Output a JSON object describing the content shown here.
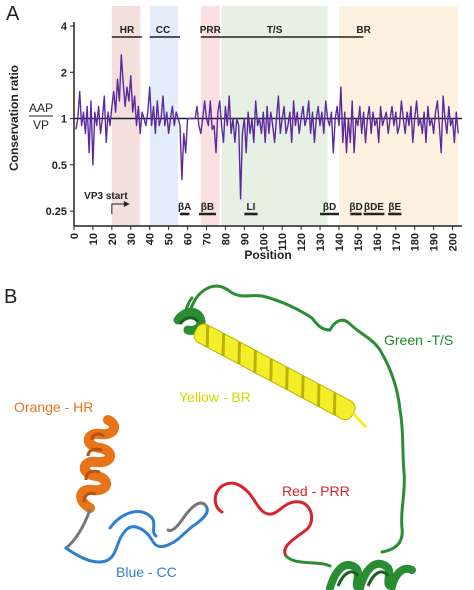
{
  "panel_a_label": "A",
  "panel_b_label": "B",
  "chart_data": {
    "type": "line",
    "title": "",
    "xlabel": "Position",
    "ylabel": "Conservation ratio",
    "ratio_label": {
      "numerator": "AAP",
      "denominator": "VP"
    },
    "xlim": [
      0,
      205
    ],
    "ylim": [
      0.2,
      4
    ],
    "yscale": "log",
    "x_ticks": [
      0,
      10,
      20,
      30,
      40,
      50,
      60,
      70,
      80,
      90,
      100,
      110,
      120,
      130,
      140,
      150,
      160,
      170,
      180,
      190,
      200
    ],
    "y_ticks": [
      {
        "value": 0.25,
        "label": "0.25"
      },
      {
        "value": 0.5,
        "label": "0.5"
      },
      {
        "value": 1,
        "label": "1"
      },
      {
        "value": 2,
        "label": "2"
      },
      {
        "value": 4,
        "label": "4"
      }
    ],
    "reference_line": 1,
    "regions": [
      {
        "label": "HR",
        "start": 20,
        "end": 35,
        "color": "#f3e0dc"
      },
      {
        "label": "CC",
        "start": 40,
        "end": 55,
        "color": "#e3eefa"
      },
      {
        "label": "PRR",
        "start": 67,
        "end": 77,
        "color": "#fbe0e3"
      },
      {
        "label": "T/S",
        "start": 78,
        "end": 134,
        "color": "#e6f1e4"
      },
      {
        "label": "BR",
        "start": 140,
        "end": 203,
        "color": "#fdf2df"
      }
    ],
    "region_labels": [
      {
        "label": "HR",
        "center": 28
      },
      {
        "label": "CC",
        "center": 47
      },
      {
        "label": "PRR",
        "center": 72
      },
      {
        "label": "T/S",
        "center": 106
      },
      {
        "label": "BR",
        "center": 153
      }
    ],
    "region_bars": [
      {
        "start": 20,
        "end": 36
      },
      {
        "start": 40,
        "end": 56
      },
      {
        "start": 67,
        "end": 153
      }
    ],
    "secondary_structure": [
      {
        "label": "βA",
        "start": 56,
        "end": 61
      },
      {
        "label": "βB",
        "start": 66,
        "end": 75
      },
      {
        "label": "LI",
        "start": 90,
        "end": 97
      },
      {
        "label": "βD",
        "start": 130,
        "end": 140
      },
      {
        "label": "βD",
        "start": 146,
        "end": 152
      },
      {
        "label": "βDE",
        "start": 153,
        "end": 164
      },
      {
        "label": "βE",
        "start": 166,
        "end": 173
      }
    ],
    "annotation": {
      "label": "VP3 start",
      "x": 20
    },
    "series": [
      {
        "color": "#5b2aa0",
        "x": [
          1,
          2,
          3,
          4,
          5,
          6,
          7,
          8,
          9,
          10,
          11,
          12,
          13,
          14,
          15,
          16,
          17,
          18,
          19,
          20,
          21,
          22,
          23,
          24,
          25,
          26,
          27,
          28,
          29,
          30,
          31,
          32,
          33,
          34,
          35,
          36,
          37,
          38,
          39,
          40,
          41,
          42,
          43,
          44,
          45,
          46,
          47,
          48,
          49,
          50,
          51,
          52,
          53,
          54,
          55,
          56,
          57,
          58,
          59,
          60,
          61,
          62,
          63,
          64,
          65,
          66,
          67,
          68,
          69,
          70,
          71,
          72,
          73,
          74,
          75,
          76,
          77,
          78,
          79,
          80,
          81,
          82,
          83,
          84,
          85,
          86,
          87,
          88,
          89,
          90,
          91,
          92,
          93,
          94,
          95,
          96,
          97,
          98,
          99,
          100,
          101,
          102,
          103,
          104,
          105,
          106,
          107,
          108,
          109,
          110,
          111,
          112,
          113,
          114,
          115,
          116,
          117,
          118,
          119,
          120,
          121,
          122,
          123,
          124,
          125,
          126,
          127,
          128,
          129,
          130,
          131,
          132,
          133,
          134,
          135,
          136,
          137,
          138,
          139,
          140,
          141,
          142,
          143,
          144,
          145,
          146,
          147,
          148,
          149,
          150,
          151,
          152,
          153,
          154,
          155,
          156,
          157,
          158,
          159,
          160,
          161,
          162,
          163,
          164,
          165,
          166,
          167,
          168,
          169,
          170,
          171,
          172,
          173,
          174,
          175,
          176,
          177,
          178,
          179,
          180,
          181,
          182,
          183,
          184,
          185,
          186,
          187,
          188,
          189,
          190,
          191,
          192,
          193,
          194,
          195,
          196,
          197,
          198,
          199,
          200,
          201,
          202,
          203
        ],
        "y": [
          0.85,
          1.0,
          1.5,
          0.9,
          1.1,
          0.8,
          1.2,
          0.6,
          1.3,
          0.5,
          1.1,
          0.9,
          1.2,
          0.8,
          1.0,
          1.4,
          0.7,
          1.1,
          0.9,
          1.2,
          1.5,
          1.1,
          1.8,
          1.3,
          2.6,
          1.7,
          1.2,
          1.6,
          1.3,
          1.9,
          1.1,
          1.4,
          0.9,
          1.2,
          0.8,
          1.1,
          1.0,
          0.9,
          1.1,
          1.6,
          0.9,
          1.2,
          0.8,
          1.3,
          0.9,
          1.0,
          1.4,
          0.9,
          1.1,
          0.8,
          1.0,
          1.2,
          0.9,
          1.1,
          1.0,
          0.9,
          0.4,
          0.8,
          0.6,
          1.0,
          1.0,
          1.0,
          1.0,
          1.0,
          1.2,
          0.9,
          0.8,
          1.0,
          1.3,
          1.0,
          0.9,
          1.3,
          0.85,
          0.9,
          0.6,
          1.1,
          1.3,
          0.9,
          0.7,
          1.2,
          0.9,
          1.4,
          0.8,
          1.0,
          0.7,
          1.0,
          0.9,
          0.3,
          0.8,
          1.0,
          0.6,
          1.1,
          0.8,
          1.0,
          0.7,
          1.3,
          0.9,
          1.0,
          0.8,
          1.1,
          0.7,
          1.2,
          0.8,
          1.1,
          0.9,
          0.7,
          1.0,
          1.4,
          0.8,
          1.0,
          1.2,
          0.8,
          0.9,
          1.1,
          0.7,
          1.3,
          0.9,
          1.1,
          0.8,
          1.0,
          1.2,
          0.9,
          1.0,
          1.3,
          0.8,
          1.1,
          0.7,
          1.0,
          1.2,
          0.9,
          1.1,
          0.8,
          1.3,
          1.0,
          0.9,
          1.1,
          0.6,
          1.0,
          1.2,
          0.9,
          1.6,
          0.7,
          1.1,
          0.6,
          1.0,
          0.7,
          1.3,
          0.6,
          1.0,
          0.9,
          1.2,
          0.8,
          1.1,
          0.7,
          1.0,
          1.2,
          0.8,
          1.1,
          0.9,
          1.0,
          0.7,
          1.2,
          0.9,
          1.0,
          1.1,
          0.8,
          1.0,
          1.2,
          0.9,
          1.1,
          0.8,
          0.9,
          1.3,
          1.0,
          0.8,
          1.1,
          0.9,
          1.2,
          0.7,
          1.0,
          1.3,
          0.9,
          1.0,
          0.8,
          1.1,
          0.7,
          1.2,
          0.9,
          1.0,
          0.8,
          1.1,
          1.3,
          0.9,
          0.6,
          1.4,
          1.0,
          0.8,
          1.2,
          0.9,
          1.0,
          0.7,
          1.1,
          0.8
        ]
      }
    ]
  },
  "structure": {
    "labels": [
      {
        "text": "Orange - HR",
        "color": "#e8741a"
      },
      {
        "text": "Blue - CC",
        "color": "#2f7fd0"
      },
      {
        "text": "Yellow - BR",
        "color": "#d8d400"
      },
      {
        "text": "Red - PRR",
        "color": "#d8232a"
      },
      {
        "text": "Green -T/S",
        "color": "#1f8a30"
      }
    ],
    "colors": {
      "orange": "#e8741a",
      "orange_dark": "#b55310",
      "blue": "#2f7fd0",
      "yellow": "#f4ee2a",
      "yellow_dark": "#b9b300",
      "red": "#d8232a",
      "green": "#2a8d33",
      "green_dark": "#166022",
      "grey": "#777777"
    }
  }
}
